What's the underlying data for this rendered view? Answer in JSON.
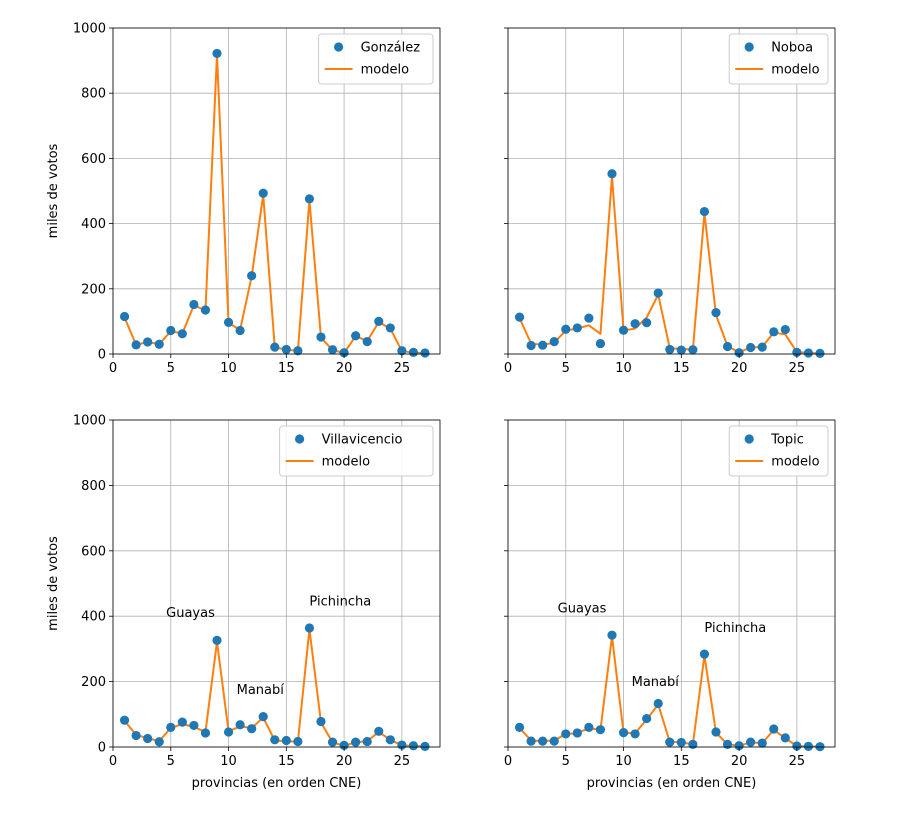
{
  "chart_data": [
    {
      "type": "line",
      "xlabel": "",
      "ylabel": "miles de votos",
      "xlim": [
        0,
        28.3
      ],
      "ylim": [
        0,
        1000
      ],
      "xticks": [
        0,
        5,
        10,
        15,
        20,
        25
      ],
      "yticks": [
        0,
        200,
        400,
        600,
        800,
        1000
      ],
      "grid": true,
      "legend_position": "top-right",
      "series": [
        {
          "name": "González",
          "kind": "scatter",
          "color": "#1f77b4",
          "x": [
            1,
            2,
            3,
            4,
            5,
            6,
            7,
            8,
            9,
            10,
            11,
            12,
            13,
            14,
            15,
            16,
            17,
            18,
            19,
            20,
            21,
            22,
            23,
            24,
            25,
            26,
            27
          ],
          "y": [
            115,
            28,
            37,
            30,
            72,
            62,
            152,
            135,
            922,
            97,
            72,
            240,
            493,
            21,
            14,
            10,
            476,
            52,
            13,
            4,
            56,
            38,
            100,
            80,
            10,
            5,
            3
          ]
        },
        {
          "name": "modelo",
          "kind": "line",
          "color": "#ff7f0e",
          "x": [
            1,
            2,
            3,
            4,
            5,
            6,
            7,
            8,
            9,
            10,
            11,
            12,
            13,
            14,
            15,
            16,
            17,
            18,
            19,
            20,
            21,
            22,
            23,
            24,
            25,
            26,
            27
          ],
          "y": [
            112,
            28,
            37,
            30,
            70,
            63,
            150,
            133,
            918,
            95,
            74,
            238,
            488,
            20,
            14,
            9,
            472,
            50,
            12,
            3,
            55,
            40,
            98,
            78,
            9,
            4,
            3
          ]
        }
      ],
      "annotations": []
    },
    {
      "type": "line",
      "xlabel": "",
      "ylabel": "",
      "xlim": [
        0,
        28.3
      ],
      "ylim": [
        0,
        1000
      ],
      "xticks": [
        0,
        5,
        10,
        15,
        20,
        25
      ],
      "yticks": [
        0,
        200,
        400,
        600,
        800,
        1000
      ],
      "grid": true,
      "legend_position": "top-right",
      "series": [
        {
          "name": "Noboa",
          "kind": "scatter",
          "color": "#1f77b4",
          "x": [
            1,
            2,
            3,
            4,
            5,
            6,
            7,
            8,
            9,
            10,
            11,
            12,
            13,
            14,
            15,
            16,
            17,
            18,
            19,
            20,
            21,
            22,
            23,
            24,
            25,
            26,
            27
          ],
          "y": [
            113,
            26,
            27,
            38,
            76,
            80,
            110,
            32,
            553,
            73,
            93,
            96,
            187,
            14,
            12,
            13,
            437,
            127,
            23,
            4,
            20,
            21,
            68,
            75,
            5,
            3,
            2
          ]
        },
        {
          "name": "modelo",
          "kind": "line",
          "color": "#ff7f0e",
          "x": [
            1,
            2,
            3,
            4,
            5,
            6,
            7,
            8,
            9,
            10,
            11,
            12,
            13,
            14,
            15,
            16,
            17,
            18,
            19,
            20,
            21,
            22,
            23,
            24,
            25,
            26,
            27
          ],
          "y": [
            110,
            32,
            28,
            35,
            72,
            78,
            88,
            62,
            545,
            72,
            78,
            112,
            182,
            18,
            15,
            14,
            432,
            120,
            24,
            5,
            20,
            22,
            66,
            60,
            6,
            3,
            2
          ]
        }
      ],
      "annotations": []
    },
    {
      "type": "line",
      "xlabel": "provincias (en orden CNE)",
      "ylabel": "miles de votos",
      "xlim": [
        0,
        28.3
      ],
      "ylim": [
        0,
        1000
      ],
      "xticks": [
        0,
        5,
        10,
        15,
        20,
        25
      ],
      "yticks": [
        0,
        200,
        400,
        600,
        800,
        1000
      ],
      "grid": true,
      "legend_position": "top-right",
      "series": [
        {
          "name": "Villavicencio",
          "kind": "scatter",
          "color": "#1f77b4",
          "x": [
            1,
            2,
            3,
            4,
            5,
            6,
            7,
            8,
            9,
            10,
            11,
            12,
            13,
            14,
            15,
            16,
            17,
            18,
            19,
            20,
            21,
            22,
            23,
            24,
            25,
            26,
            27
          ],
          "y": [
            82,
            35,
            26,
            16,
            60,
            76,
            66,
            43,
            326,
            46,
            68,
            56,
            93,
            22,
            20,
            17,
            364,
            78,
            15,
            5,
            15,
            17,
            48,
            22,
            6,
            4,
            2
          ]
        },
        {
          "name": "modelo",
          "kind": "line",
          "color": "#ff7f0e",
          "x": [
            1,
            2,
            3,
            4,
            5,
            6,
            7,
            8,
            9,
            10,
            11,
            12,
            13,
            14,
            15,
            16,
            17,
            18,
            19,
            20,
            21,
            22,
            23,
            24,
            25,
            26,
            27
          ],
          "y": [
            80,
            37,
            27,
            18,
            58,
            70,
            62,
            45,
            322,
            48,
            63,
            58,
            90,
            20,
            18,
            16,
            360,
            75,
            14,
            4,
            14,
            18,
            46,
            22,
            5,
            3,
            2
          ]
        }
      ],
      "annotations": [
        {
          "text": "Guayas",
          "x": 4.6,
          "y": 398
        },
        {
          "text": "Manabí",
          "x": 10.7,
          "y": 162
        },
        {
          "text": "Pichincha",
          "x": 17.0,
          "y": 432
        }
      ]
    },
    {
      "type": "line",
      "xlabel": "provincias (en orden CNE)",
      "ylabel": "",
      "xlim": [
        0,
        28.3
      ],
      "ylim": [
        0,
        1000
      ],
      "xticks": [
        0,
        5,
        10,
        15,
        20,
        25
      ],
      "yticks": [
        0,
        200,
        400,
        600,
        800,
        1000
      ],
      "grid": true,
      "legend_position": "top-right",
      "series": [
        {
          "name": "Topic",
          "kind": "scatter",
          "color": "#1f77b4",
          "x": [
            1,
            2,
            3,
            4,
            5,
            6,
            7,
            8,
            9,
            10,
            11,
            12,
            13,
            14,
            15,
            16,
            17,
            18,
            19,
            20,
            21,
            22,
            23,
            24,
            25,
            26,
            27
          ],
          "y": [
            60,
            18,
            18,
            18,
            40,
            43,
            60,
            53,
            342,
            44,
            40,
            87,
            133,
            15,
            14,
            8,
            284,
            46,
            8,
            4,
            15,
            12,
            55,
            28,
            3,
            2,
            1
          ]
        },
        {
          "name": "modelo",
          "kind": "line",
          "color": "#ff7f0e",
          "x": [
            1,
            2,
            3,
            4,
            5,
            6,
            7,
            8,
            9,
            10,
            11,
            12,
            13,
            14,
            15,
            16,
            17,
            18,
            19,
            20,
            21,
            22,
            23,
            24,
            25,
            26,
            27
          ],
          "y": [
            58,
            20,
            18,
            20,
            40,
            42,
            58,
            52,
            338,
            44,
            42,
            84,
            130,
            16,
            14,
            8,
            280,
            44,
            8,
            4,
            14,
            12,
            52,
            27,
            3,
            2,
            1
          ]
        }
      ],
      "annotations": [
        {
          "text": "Guayas",
          "x": 4.3,
          "y": 412
        },
        {
          "text": "Manabí",
          "x": 10.7,
          "y": 186
        },
        {
          "text": "Pichincha",
          "x": 17.0,
          "y": 352
        }
      ]
    }
  ]
}
